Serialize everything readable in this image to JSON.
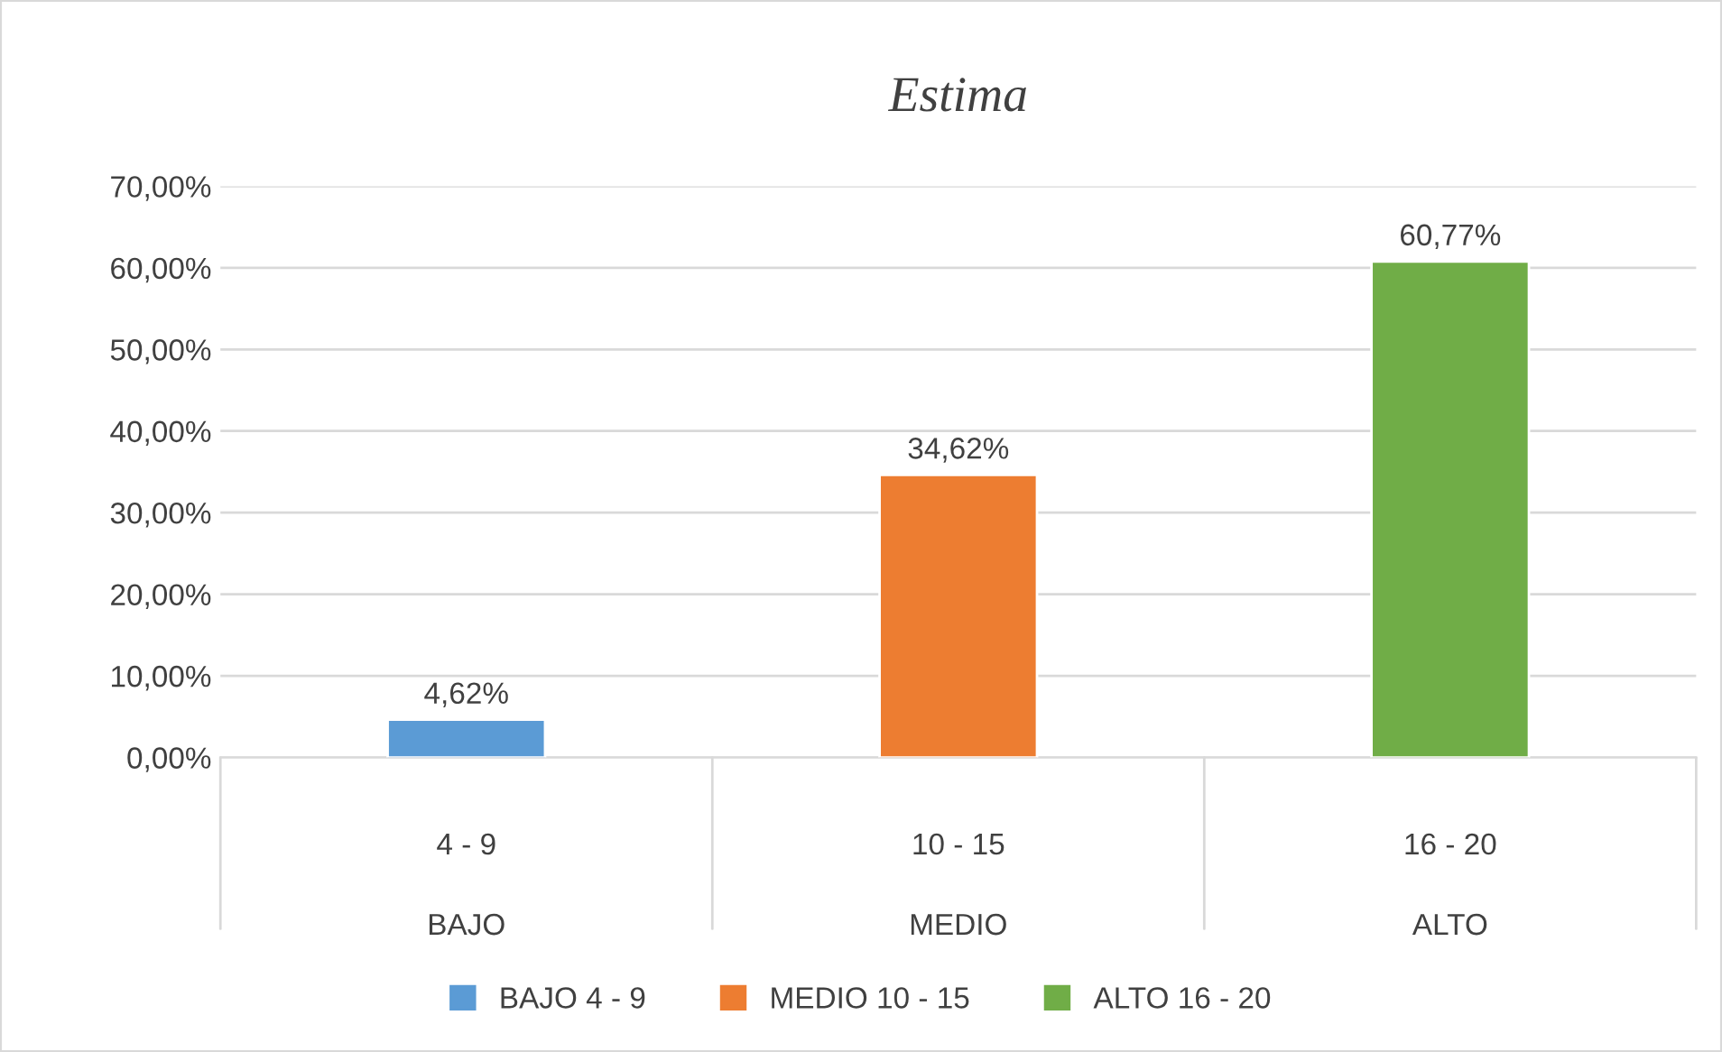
{
  "chart_data": {
    "type": "bar",
    "title": "Estima",
    "categories": [
      "4 - 9\nBAJO",
      "10 - 15\nMEDIO",
      "16 - 20\nALTO"
    ],
    "series": [
      {
        "name": "BAJO 4 - 9",
        "color": "#5b9bd5",
        "values": [
          4.62,
          null,
          null
        ],
        "value_labels": [
          "4,62%",
          null,
          null
        ]
      },
      {
        "name": "MEDIO 10 - 15",
        "color": "#ed7d31",
        "values": [
          null,
          34.62,
          null
        ],
        "value_labels": [
          null,
          "34,62%",
          null
        ]
      },
      {
        "name": "ALTO 16 - 20",
        "color": "#70ad47",
        "values": [
          null,
          null,
          60.77
        ],
        "value_labels": [
          null,
          null,
          "60,77%"
        ]
      }
    ],
    "ylim": [
      0,
      70
    ],
    "yticks": [
      {
        "value": 0,
        "label": "0,00%"
      },
      {
        "value": 10,
        "label": "10,00%"
      },
      {
        "value": 20,
        "label": "20,00%"
      },
      {
        "value": 30,
        "label": "30,00%"
      },
      {
        "value": 40,
        "label": "40,00%"
      },
      {
        "value": 50,
        "label": "50,00%"
      },
      {
        "value": 60,
        "label": "60,00%"
      },
      {
        "value": 70,
        "label": "70,00%"
      }
    ],
    "grid": "y",
    "legend": "bottom"
  }
}
